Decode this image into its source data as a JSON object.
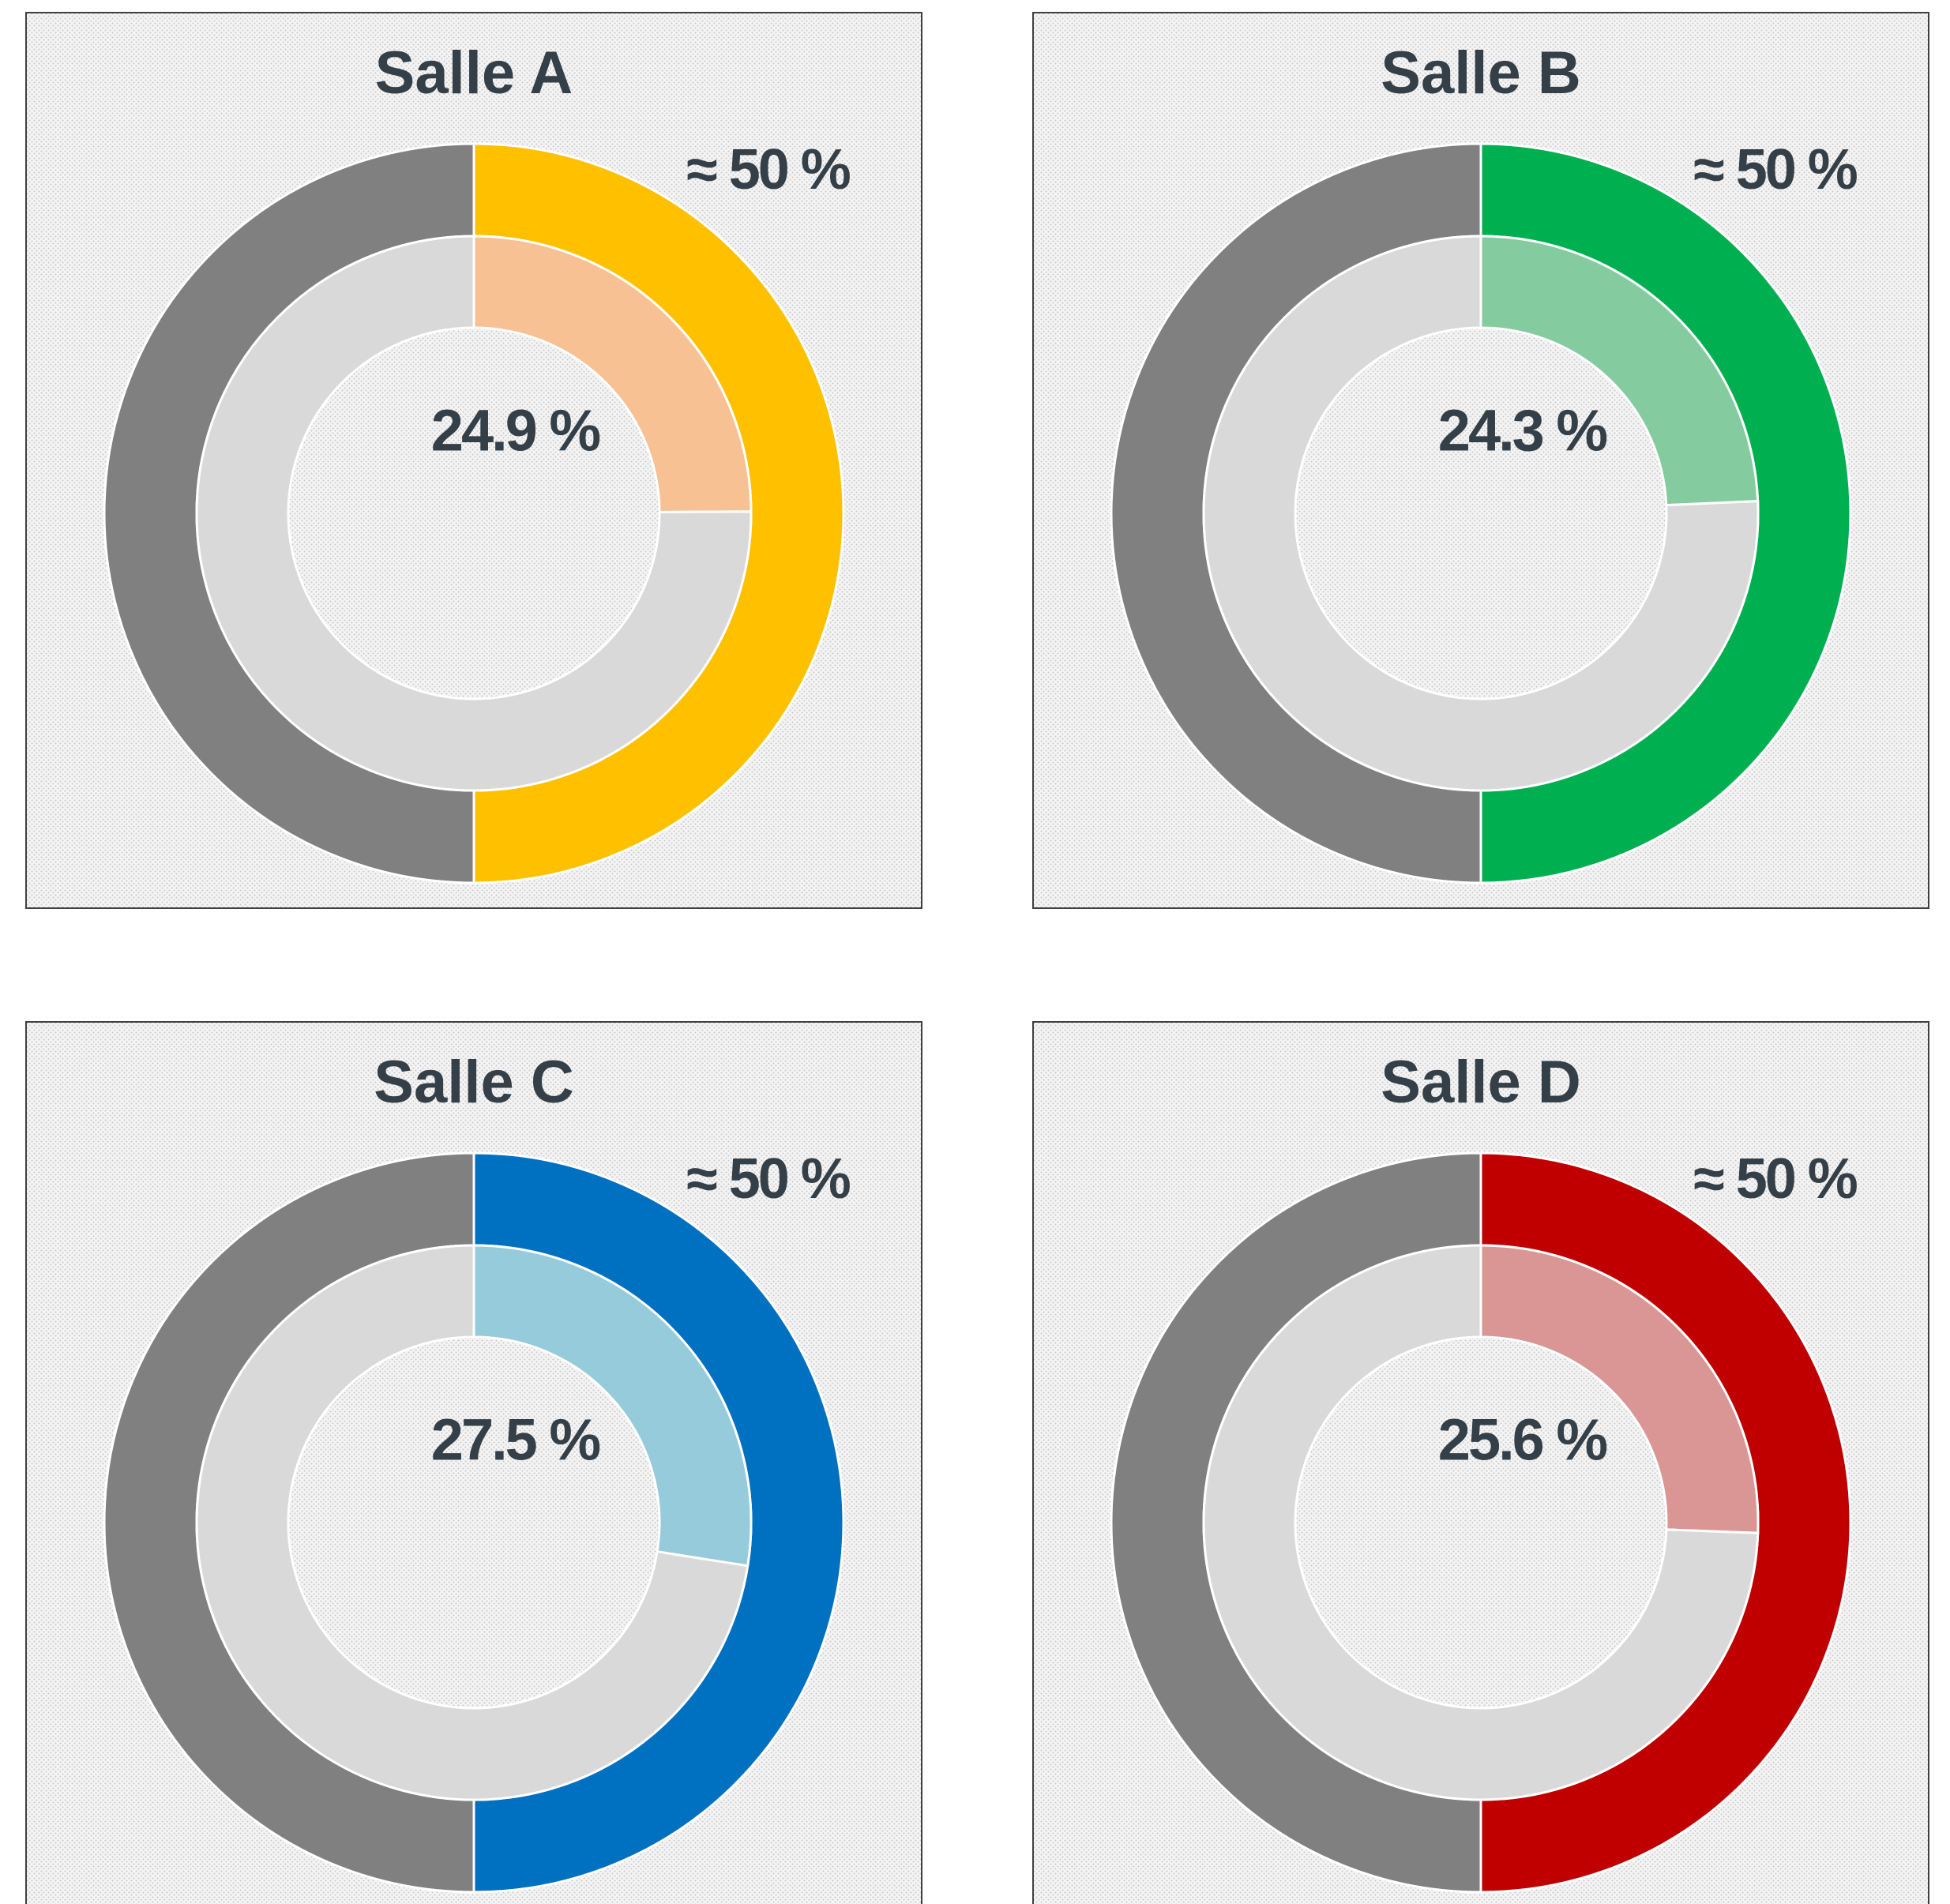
{
  "chart_data": [
    {
      "type": "donut",
      "title": "Salle A",
      "series": [
        {
          "values": [
            50,
            50
          ],
          "colors": [
            "#ffc000",
            "#808080"
          ],
          "value_labels": [
            "≈ 50 %",
            null
          ]
        },
        {
          "values": [
            24.9,
            75.1
          ],
          "colors": [
            "#f8c193",
            "#d9d9d9"
          ],
          "value_labels": [
            "24.9 %",
            null
          ]
        }
      ]
    },
    {
      "type": "donut",
      "title": "Salle B",
      "series": [
        {
          "values": [
            50,
            50
          ],
          "colors": [
            "#00b050",
            "#808080"
          ],
          "value_labels": [
            "≈ 50 %",
            null
          ]
        },
        {
          "values": [
            24.3,
            75.7
          ],
          "colors": [
            "#85cba0",
            "#d9d9d9"
          ],
          "value_labels": [
            "24.3 %",
            null
          ]
        }
      ]
    },
    {
      "type": "donut",
      "title": "Salle C",
      "series": [
        {
          "values": [
            50,
            50
          ],
          "colors": [
            "#0070c0",
            "#808080"
          ],
          "value_labels": [
            "≈ 50 %",
            null
          ]
        },
        {
          "values": [
            27.5,
            72.5
          ],
          "colors": [
            "#96cbdc",
            "#d9d9d9"
          ],
          "value_labels": [
            "27.5 %",
            null
          ]
        }
      ]
    },
    {
      "type": "donut",
      "title": "Salle D",
      "series": [
        {
          "values": [
            50,
            50
          ],
          "colors": [
            "#c00000",
            "#808080"
          ],
          "value_labels": [
            "≈ 50 %",
            null
          ]
        },
        {
          "values": [
            25.6,
            74.4
          ],
          "colors": [
            "#d99694",
            "#d9d9d9"
          ],
          "value_labels": [
            "25.6 %",
            null
          ]
        }
      ]
    }
  ]
}
